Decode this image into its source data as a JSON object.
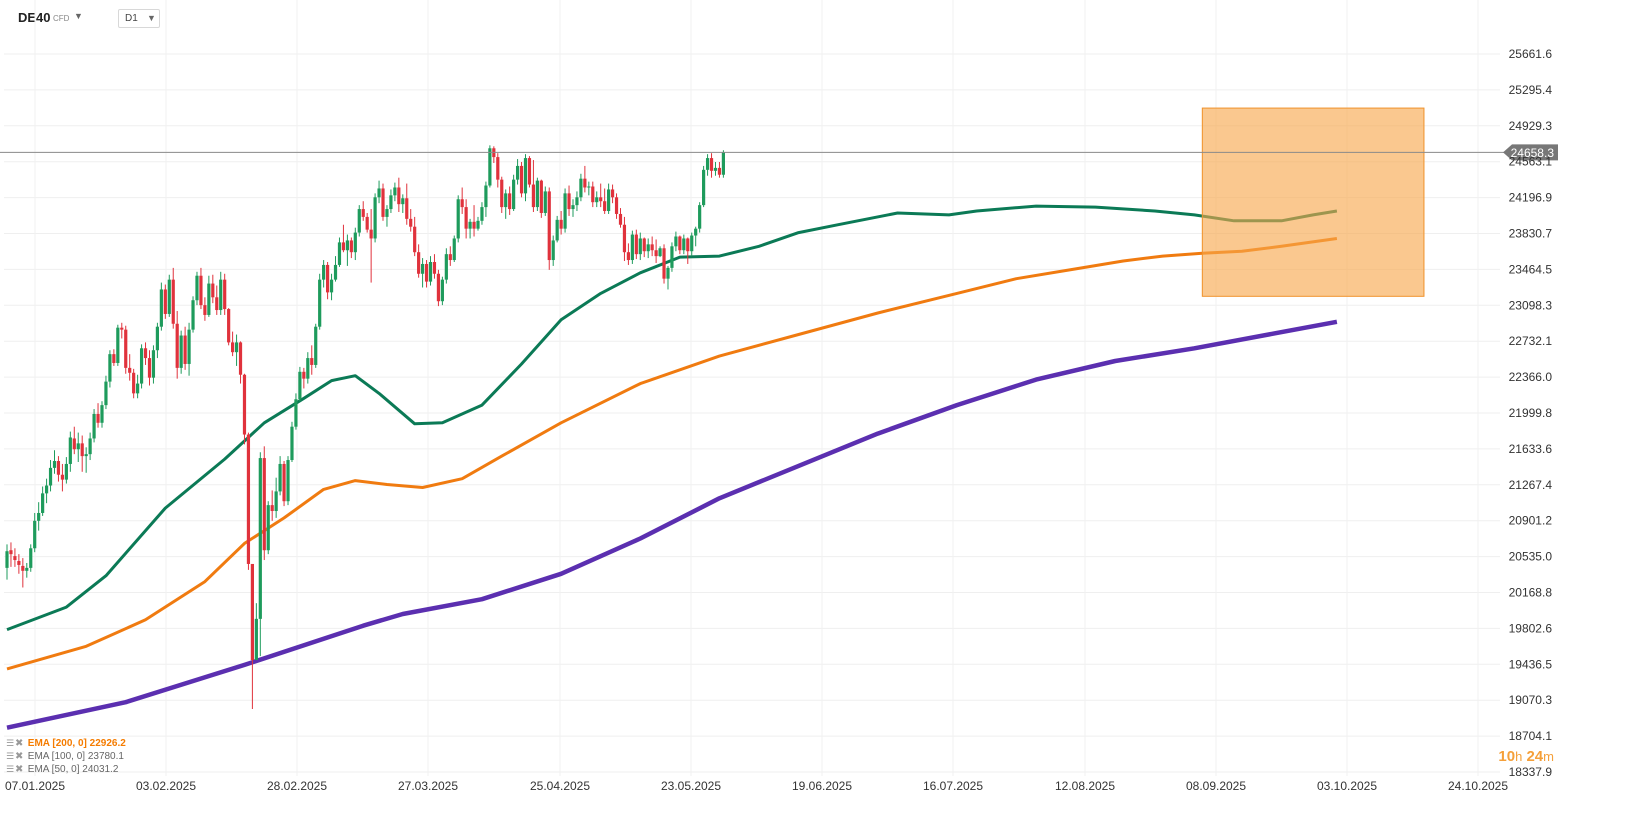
{
  "header": {
    "symbol": "DE40",
    "symbol_type": "CFD",
    "timeframe": "D1"
  },
  "legend": [
    {
      "label": "EMA [200, 0] 22926.2",
      "color": "#f57c00"
    },
    {
      "label": "EMA [100, 0] 23780.1",
      "color": "#6b6b6b"
    },
    {
      "label": "EMA [50, 0] 24031.2",
      "color": "#6b6b6b"
    }
  ],
  "timer": {
    "hours": "10",
    "h_unit": "h",
    "minutes": "24",
    "m_unit": "m"
  },
  "colors": {
    "up": "#1e9b5c",
    "down": "#e0323c",
    "ema50": "#0b7a56",
    "ema100": "#f07b10",
    "ema200": "#5b2fb0",
    "highlight": "#f7a64a",
    "price_tag": "#777777"
  },
  "chart_data": {
    "type": "candlestick",
    "symbol": "DE40",
    "timeframe": "D1",
    "y_ticks": [
      25661.6,
      25295.4,
      24929.3,
      24563.1,
      24196.9,
      23830.7,
      23464.5,
      23098.3,
      22732.1,
      22366.0,
      21999.8,
      21633.6,
      21267.4,
      20901.2,
      20535.0,
      20168.8,
      19802.6,
      19436.5,
      19070.3,
      18704.1,
      18337.9
    ],
    "ylim": [
      18337.9,
      25661.6
    ],
    "x_tick_labels": [
      "07.01.2025",
      "03.02.2025",
      "28.02.2025",
      "27.03.2025",
      "25.04.2025",
      "23.05.2025",
      "19.06.2025",
      "16.07.2025",
      "12.08.2025",
      "08.09.2025",
      "03.10.2025",
      "24.10.2025"
    ],
    "last_price_label": "24658.3",
    "last_price": 24658.3,
    "candles": [
      [
        20420,
        20660,
        20300,
        20590
      ],
      [
        20600,
        20680,
        20430,
        20560
      ],
      [
        20540,
        20620,
        20430,
        20500
      ],
      [
        20490,
        20560,
        20360,
        20450
      ],
      [
        20440,
        20520,
        20220,
        20390
      ],
      [
        20390,
        20470,
        20320,
        20420
      ],
      [
        20420,
        20660,
        20380,
        20620
      ],
      [
        20620,
        20980,
        20580,
        20900
      ],
      [
        20900,
        21090,
        20800,
        20980
      ],
      [
        20980,
        21250,
        20950,
        21180
      ],
      [
        21180,
        21330,
        21080,
        21260
      ],
      [
        21260,
        21520,
        21200,
        21440
      ],
      [
        21440,
        21620,
        21380,
        21510
      ],
      [
        21510,
        21560,
        21300,
        21370
      ],
      [
        21370,
        21480,
        21200,
        21320
      ],
      [
        21320,
        21550,
        21280,
        21480
      ],
      [
        21480,
        21810,
        21400,
        21750
      ],
      [
        21740,
        21860,
        21580,
        21630
      ],
      [
        21630,
        21800,
        21500,
        21690
      ],
      [
        21690,
        21770,
        21400,
        21560
      ],
      [
        21560,
        21650,
        21390,
        21580
      ],
      [
        21580,
        21800,
        21520,
        21740
      ],
      [
        21740,
        22040,
        21700,
        21990
      ],
      [
        21990,
        22100,
        21850,
        21900
      ],
      [
        21900,
        22120,
        21850,
        22080
      ],
      [
        22080,
        22380,
        22040,
        22320
      ],
      [
        22320,
        22640,
        22260,
        22600
      ],
      [
        22600,
        22650,
        22480,
        22510
      ],
      [
        22510,
        22900,
        22480,
        22870
      ],
      [
        22870,
        22920,
        22760,
        22850
      ],
      [
        22850,
        22890,
        22400,
        22460
      ],
      [
        22460,
        22600,
        22330,
        22410
      ],
      [
        22410,
        22450,
        22150,
        22200
      ],
      [
        22200,
        22390,
        22150,
        22300
      ],
      [
        22300,
        22700,
        22250,
        22660
      ],
      [
        22660,
        22720,
        22490,
        22560
      ],
      [
        22560,
        22640,
        22280,
        22360
      ],
      [
        22360,
        22690,
        22300,
        22640
      ],
      [
        22640,
        22920,
        22560,
        22880
      ],
      [
        22880,
        23330,
        22840,
        23260
      ],
      [
        23260,
        23310,
        22960,
        23010
      ],
      [
        23010,
        23410,
        22980,
        23360
      ],
      [
        23360,
        23480,
        22860,
        22910
      ],
      [
        22910,
        23040,
        22350,
        22460
      ],
      [
        22460,
        22840,
        22400,
        22790
      ],
      [
        22790,
        22880,
        22440,
        22500
      ],
      [
        22500,
        22920,
        22380,
        22850
      ],
      [
        22850,
        23190,
        22820,
        23150
      ],
      [
        23150,
        23440,
        23100,
        23400
      ],
      [
        23400,
        23480,
        23060,
        23100
      ],
      [
        23100,
        23180,
        22940,
        23000
      ],
      [
        23000,
        23400,
        22980,
        23320
      ],
      [
        23320,
        23410,
        23120,
        23180
      ],
      [
        23180,
        23300,
        23000,
        23050
      ],
      [
        23050,
        23440,
        23000,
        23360
      ],
      [
        23360,
        23420,
        23000,
        23060
      ],
      [
        23060,
        23070,
        22690,
        22720
      ],
      [
        22720,
        22830,
        22580,
        22620
      ],
      [
        22620,
        22800,
        22480,
        22720
      ],
      [
        22720,
        22730,
        22300,
        22390
      ],
      [
        22390,
        22400,
        21680,
        21780
      ],
      [
        21780,
        21800,
        20400,
        20460
      ],
      [
        20460,
        20460,
        18980,
        19480
      ],
      [
        19480,
        20060,
        19480,
        19900
      ],
      [
        19900,
        21600,
        19520,
        21540
      ],
      [
        21540,
        21660,
        20500,
        20600
      ],
      [
        20600,
        21100,
        20560,
        21060
      ],
      [
        21060,
        21210,
        20900,
        21000
      ],
      [
        21000,
        21340,
        20930,
        21200
      ],
      [
        21200,
        21560,
        21160,
        21480
      ],
      [
        21480,
        21510,
        21050,
        21100
      ],
      [
        21100,
        21560,
        21060,
        21520
      ],
      [
        21520,
        21910,
        21500,
        21860
      ],
      [
        21860,
        22200,
        21830,
        22140
      ],
      [
        22140,
        22470,
        22120,
        22420
      ],
      [
        22420,
        22460,
        22250,
        22350
      ],
      [
        22350,
        22620,
        22300,
        22560
      ],
      [
        22560,
        22690,
        22390,
        22490
      ],
      [
        22490,
        22910,
        22460,
        22880
      ],
      [
        22880,
        23420,
        22850,
        23360
      ],
      [
        23360,
        23560,
        23280,
        23510
      ],
      [
        23510,
        23540,
        23160,
        23230
      ],
      [
        23230,
        23420,
        23150,
        23360
      ],
      [
        23360,
        23600,
        23340,
        23510
      ],
      [
        23510,
        23790,
        23490,
        23740
      ],
      [
        23740,
        23920,
        23640,
        23660
      ],
      [
        23660,
        23820,
        23500,
        23760
      ],
      [
        23760,
        23790,
        23580,
        23640
      ],
      [
        23640,
        23890,
        23560,
        23840
      ],
      [
        23840,
        24120,
        23800,
        24080
      ],
      [
        24080,
        24160,
        23960,
        24000
      ],
      [
        24000,
        24040,
        23840,
        23870
      ],
      [
        23870,
        24080,
        23330,
        23780
      ],
      [
        23780,
        24240,
        23740,
        24200
      ],
      [
        24200,
        24370,
        24140,
        24290
      ],
      [
        24290,
        24340,
        23960,
        24000
      ],
      [
        24000,
        24120,
        23900,
        24080
      ],
      [
        24080,
        24280,
        24040,
        24220
      ],
      [
        24220,
        24350,
        24160,
        24300
      ],
      [
        24300,
        24400,
        24050,
        24130
      ],
      [
        24130,
        24230,
        24040,
        24190
      ],
      [
        24190,
        24340,
        23920,
        23980
      ],
      [
        23980,
        24080,
        23850,
        23900
      ],
      [
        23900,
        24000,
        23600,
        23640
      ],
      [
        23640,
        23720,
        23380,
        23420
      ],
      [
        23420,
        23580,
        23280,
        23520
      ],
      [
        23520,
        23560,
        23280,
        23340
      ],
      [
        23340,
        23600,
        23300,
        23540
      ],
      [
        23540,
        23620,
        23370,
        23420
      ],
      [
        23420,
        23460,
        23090,
        23140
      ],
      [
        23140,
        23390,
        23100,
        23360
      ],
      [
        23360,
        23680,
        23320,
        23620
      ],
      [
        23620,
        23700,
        23500,
        23560
      ],
      [
        23560,
        23810,
        23540,
        23780
      ],
      [
        23780,
        24220,
        23740,
        24180
      ],
      [
        24180,
        24300,
        24030,
        24100
      ],
      [
        24100,
        24180,
        23780,
        23880
      ],
      [
        23880,
        23980,
        23780,
        23950
      ],
      [
        23950,
        24120,
        23800,
        23880
      ],
      [
        23880,
        24000,
        23860,
        23960
      ],
      [
        23960,
        24150,
        23920,
        24100
      ],
      [
        24100,
        24360,
        24000,
        24320
      ],
      [
        24320,
        24730,
        24300,
        24700
      ],
      [
        24700,
        24720,
        24550,
        24610
      ],
      [
        24610,
        24650,
        24300,
        24380
      ],
      [
        24380,
        24410,
        24040,
        24100
      ],
      [
        24100,
        24280,
        23980,
        24240
      ],
      [
        24240,
        24310,
        24020,
        24080
      ],
      [
        24080,
        24430,
        24060,
        24380
      ],
      [
        24380,
        24590,
        24330,
        24520
      ],
      [
        24520,
        24560,
        24200,
        24240
      ],
      [
        24240,
        24640,
        24160,
        24600
      ],
      [
        24600,
        24620,
        24300,
        24330
      ],
      [
        24330,
        24580,
        24050,
        24100
      ],
      [
        24100,
        24400,
        24060,
        24370
      ],
      [
        24370,
        24380,
        23990,
        24040
      ],
      [
        24040,
        24310,
        24010,
        24260
      ],
      [
        24260,
        24300,
        23460,
        23560
      ],
      [
        23560,
        23810,
        23500,
        23760
      ],
      [
        23760,
        24010,
        23740,
        23970
      ],
      [
        23970,
        24060,
        23820,
        23880
      ],
      [
        23880,
        24290,
        23840,
        24240
      ],
      [
        24240,
        24320,
        24010,
        24080
      ],
      [
        24080,
        24180,
        24000,
        24120
      ],
      [
        24120,
        24260,
        24060,
        24200
      ],
      [
        24200,
        24440,
        24160,
        24390
      ],
      [
        24390,
        24520,
        24250,
        24300
      ],
      [
        24300,
        24360,
        24220,
        24310
      ],
      [
        24310,
        24360,
        24100,
        24150
      ],
      [
        24150,
        24260,
        24100,
        24200
      ],
      [
        24200,
        24340,
        24100,
        24160
      ],
      [
        24160,
        24290,
        24030,
        24060
      ],
      [
        24060,
        24340,
        24030,
        24280
      ],
      [
        24280,
        24330,
        24140,
        24200
      ],
      [
        24200,
        24240,
        23980,
        24030
      ],
      [
        24030,
        24090,
        23890,
        23920
      ],
      [
        23920,
        24000,
        23550,
        23640
      ],
      [
        23640,
        23730,
        23510,
        23560
      ],
      [
        23560,
        23860,
        23520,
        23820
      ],
      [
        23820,
        23870,
        23570,
        23620
      ],
      [
        23620,
        23840,
        23560,
        23780
      ],
      [
        23780,
        23790,
        23590,
        23650
      ],
      [
        23650,
        23780,
        23580,
        23720
      ],
      [
        23720,
        23800,
        23600,
        23660
      ],
      [
        23660,
        23770,
        23530,
        23600
      ],
      [
        23600,
        23700,
        23590,
        23680
      ],
      [
        23680,
        23720,
        23320,
        23370
      ],
      [
        23370,
        23500,
        23260,
        23480
      ],
      [
        23480,
        23740,
        23440,
        23700
      ],
      [
        23700,
        23850,
        23650,
        23800
      ],
      [
        23800,
        23810,
        23620,
        23660
      ],
      [
        23660,
        23820,
        23620,
        23780
      ],
      [
        23780,
        23790,
        23520,
        23650
      ],
      [
        23650,
        23840,
        23600,
        23810
      ],
      [
        23810,
        23900,
        23700,
        23880
      ],
      [
        23880,
        24150,
        23840,
        24120
      ],
      [
        24120,
        24520,
        24100,
        24480
      ],
      [
        24480,
        24640,
        24420,
        24600
      ],
      [
        24600,
        24650,
        24400,
        24470
      ],
      [
        24470,
        24560,
        24420,
        24500
      ],
      [
        24500,
        24560,
        24400,
        24430
      ],
      [
        24430,
        24680,
        24400,
        24658
      ]
    ],
    "series": [
      {
        "name": "EMA [50, 0] 24031.2"
      },
      {
        "name": "EMA [100, 0] 23780.1"
      },
      {
        "name": "EMA [200, 0] 22926.2"
      }
    ],
    "ema50": [
      [
        0,
        19790
      ],
      [
        15,
        20020
      ],
      [
        25,
        20340
      ],
      [
        40,
        21030
      ],
      [
        55,
        21530
      ],
      [
        65,
        21900
      ],
      [
        75,
        22150
      ],
      [
        82,
        22330
      ],
      [
        88,
        22380
      ],
      [
        94,
        22200
      ],
      [
        103,
        21890
      ],
      [
        110,
        21900
      ],
      [
        120,
        22080
      ],
      [
        130,
        22500
      ],
      [
        140,
        22950
      ],
      [
        150,
        23220
      ],
      [
        160,
        23430
      ],
      [
        170,
        23590
      ],
      [
        180,
        23600
      ],
      [
        190,
        23700
      ],
      [
        200,
        23840
      ],
      [
        210,
        23920
      ],
      [
        225,
        24040
      ],
      [
        238,
        24020
      ],
      [
        245,
        24060
      ],
      [
        260,
        24110
      ],
      [
        275,
        24100
      ],
      [
        290,
        24060
      ],
      [
        300,
        24020
      ],
      [
        310,
        23960
      ],
      [
        315,
        23960
      ],
      [
        322,
        23960
      ],
      [
        330,
        24020
      ],
      [
        336,
        24060
      ]
    ],
    "ema100": [
      [
        0,
        19390
      ],
      [
        20,
        19620
      ],
      [
        35,
        19890
      ],
      [
        50,
        20280
      ],
      [
        60,
        20670
      ],
      [
        70,
        20930
      ],
      [
        80,
        21220
      ],
      [
        88,
        21310
      ],
      [
        96,
        21270
      ],
      [
        105,
        21240
      ],
      [
        115,
        21330
      ],
      [
        125,
        21560
      ],
      [
        140,
        21900
      ],
      [
        160,
        22300
      ],
      [
        180,
        22580
      ],
      [
        200,
        22800
      ],
      [
        220,
        23020
      ],
      [
        240,
        23220
      ],
      [
        255,
        23370
      ],
      [
        270,
        23470
      ],
      [
        282,
        23550
      ],
      [
        292,
        23600
      ],
      [
        302,
        23630
      ],
      [
        312,
        23650
      ],
      [
        322,
        23700
      ],
      [
        336,
        23780
      ]
    ],
    "ema200": [
      [
        0,
        18790
      ],
      [
        30,
        19050
      ],
      [
        60,
        19430
      ],
      [
        90,
        19830
      ],
      [
        100,
        19950
      ],
      [
        120,
        20100
      ],
      [
        140,
        20360
      ],
      [
        160,
        20720
      ],
      [
        180,
        21130
      ],
      [
        200,
        21460
      ],
      [
        220,
        21790
      ],
      [
        240,
        22080
      ],
      [
        260,
        22340
      ],
      [
        280,
        22530
      ],
      [
        300,
        22660
      ],
      [
        320,
        22810
      ],
      [
        336,
        22930
      ]
    ],
    "highlight_zone": {
      "i_start": 302,
      "i_end": 358,
      "y_top": 25110,
      "y_bottom": 23190
    }
  }
}
